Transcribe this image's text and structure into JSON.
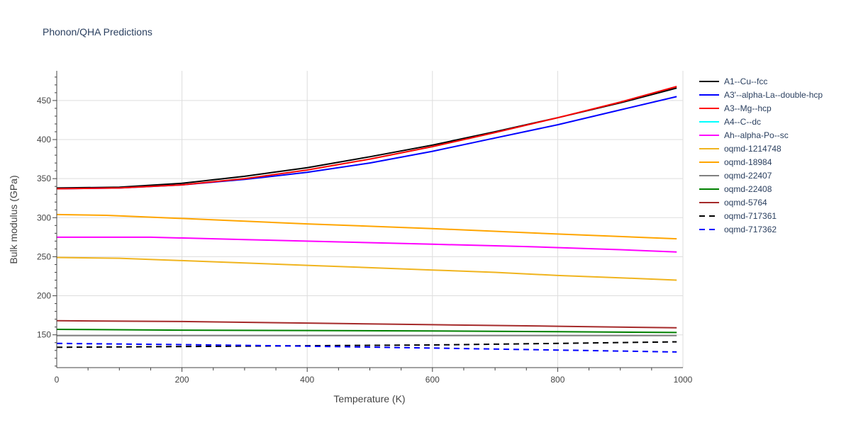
{
  "chart_data": {
    "type": "line",
    "title": "Phonon/QHA Predictions",
    "xlabel": "Temperature (K)",
    "ylabel": "Bulk modulus (GPa)",
    "xlim": [
      0,
      1000
    ],
    "ylim": [
      108,
      488
    ],
    "xticks": [
      0,
      200,
      400,
      600,
      800,
      1000
    ],
    "yticks": [
      150,
      200,
      250,
      300,
      350,
      400,
      450
    ],
    "grid": true,
    "legend_position": "right",
    "series": [
      {
        "name": "A1--Cu--fcc",
        "color": "#000000",
        "dash": false,
        "x": [
          0,
          100,
          200,
          300,
          400,
          500,
          600,
          700,
          800,
          900,
          990
        ],
        "y": [
          338,
          339,
          344,
          353,
          364,
          378,
          393,
          410,
          428,
          447,
          466
        ]
      },
      {
        "name": "A3'--alpha-La--double-hcp",
        "color": "#0000ff",
        "dash": false,
        "x": [
          0,
          100,
          200,
          300,
          400,
          500,
          600,
          700,
          800,
          900,
          990
        ],
        "y": [
          337,
          338,
          342,
          349,
          358,
          370,
          385,
          402,
          419,
          438,
          455
        ]
      },
      {
        "name": "A3--Mg--hcp",
        "color": "#ff0000",
        "dash": false,
        "x": [
          0,
          100,
          200,
          300,
          400,
          500,
          600,
          700,
          800,
          900,
          990
        ],
        "y": [
          337,
          338,
          342,
          350,
          361,
          375,
          391,
          409,
          428,
          448,
          468
        ]
      },
      {
        "name": "A4--C--dc",
        "color": "#00ffff",
        "dash": false,
        "x": [],
        "y": []
      },
      {
        "name": "Ah--alpha-Po--sc",
        "color": "#ff00ff",
        "dash": false,
        "x": [
          0,
          150,
          300,
          450,
          600,
          750,
          900,
          990
        ],
        "y": [
          275,
          275,
          272,
          269,
          266,
          263,
          259,
          256
        ]
      },
      {
        "name": "oqmd-1214748",
        "color": "#f0b41e",
        "dash": false,
        "x": [
          0,
          100,
          200,
          300,
          400,
          500,
          600,
          700,
          800,
          900,
          990
        ],
        "y": [
          249,
          248,
          245,
          242,
          239,
          236,
          233,
          230,
          226,
          223,
          220
        ]
      },
      {
        "name": "oqmd-18984",
        "color": "#ffa500",
        "dash": false,
        "x": [
          0,
          80,
          200,
          400,
          600,
          800,
          990
        ],
        "y": [
          304,
          303,
          299,
          292,
          286,
          279,
          273
        ]
      },
      {
        "name": "oqmd-22407",
        "color": "#808080",
        "dash": false,
        "x": [
          0,
          200,
          400,
          600,
          800,
          990
        ],
        "y": [
          149,
          149,
          149,
          149,
          149,
          149
        ]
      },
      {
        "name": "oqmd-22408",
        "color": "#008000",
        "dash": false,
        "x": [
          0,
          200,
          400,
          600,
          800,
          990
        ],
        "y": [
          157,
          156,
          155.5,
          155,
          154,
          153
        ]
      },
      {
        "name": "oqmd-5764",
        "color": "#a52a2a",
        "dash": false,
        "x": [
          0,
          200,
          400,
          600,
          800,
          990
        ],
        "y": [
          168,
          167,
          165,
          163,
          161,
          159
        ]
      },
      {
        "name": "oqmd-717361",
        "color": "#000000",
        "dash": true,
        "x": [
          0,
          200,
          400,
          600,
          800,
          990
        ],
        "y": [
          134,
          135,
          136,
          137,
          139,
          141
        ]
      },
      {
        "name": "oqmd-717362",
        "color": "#0000ff",
        "dash": true,
        "x": [
          0,
          200,
          400,
          600,
          800,
          990
        ],
        "y": [
          139,
          137.5,
          135.5,
          133,
          130.5,
          128
        ]
      }
    ]
  }
}
